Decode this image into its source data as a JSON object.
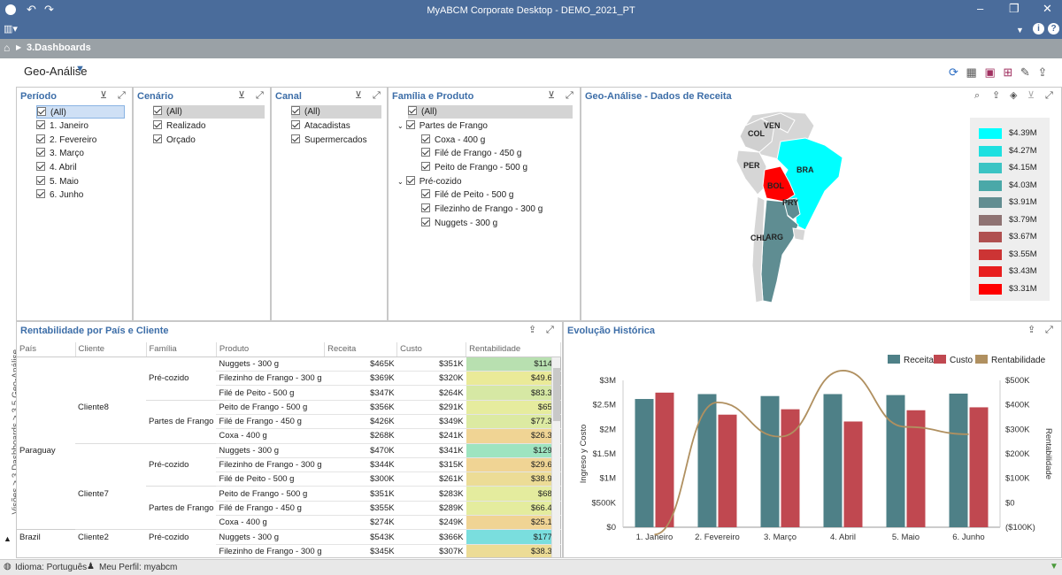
{
  "window": {
    "title": "MyABCM Corporate Desktop - DEMO_2021_PT"
  },
  "nav": {
    "breadcrumb": "3.Dashboards"
  },
  "dashboard": {
    "title": "Geo-Análise",
    "side_path": "Visões > 3.Dashboards > 3.5.Geo-Análise"
  },
  "filters": {
    "periodo": {
      "title": "Período",
      "items": [
        "(All)",
        "1. Janeiro",
        "2. Fevereiro",
        "3. Março",
        "4. Abril",
        "5. Maio",
        "6. Junho"
      ]
    },
    "cenario": {
      "title": "Cenário",
      "items": [
        "(All)",
        "Realizado",
        "Orçado"
      ]
    },
    "canal": {
      "title": "Canal",
      "items": [
        "(All)",
        "Atacadistas",
        "Supermercados"
      ]
    },
    "familia": {
      "title": "Família e Produto",
      "items": [
        "(All)",
        "Partes de Frango",
        "Coxa - 400 g",
        "Filé de Frango - 450 g",
        "Peito de Frango - 500 g",
        "Pré-cozido",
        "Filé de Peito - 500 g",
        "Filezinho de Frango - 300 g",
        "Nuggets - 300 g"
      ]
    }
  },
  "geo": {
    "title": "Geo-Análise - Dados de Receita",
    "countries": {
      "col": "COL",
      "ven": "VEN",
      "per": "PER",
      "bra": "BRA",
      "bol": "BOL",
      "pry": "PRY",
      "chl": "CHL",
      "arg": "ARG"
    },
    "legend": [
      {
        "label": "$4.39M",
        "color": "#00ffff"
      },
      {
        "label": "$4.27M",
        "color": "#1ee0e0"
      },
      {
        "label": "$4.15M",
        "color": "#3cc4c4"
      },
      {
        "label": "$4.03M",
        "color": "#4aa8a8"
      },
      {
        "label": "$3.91M",
        "color": "#628d91"
      },
      {
        "label": "$3.79M",
        "color": "#8f7373"
      },
      {
        "label": "$3.67M",
        "color": "#b05050"
      },
      {
        "label": "$3.55M",
        "color": "#cc3434"
      },
      {
        "label": "$3.43M",
        "color": "#e81e1e"
      },
      {
        "label": "$3.31M",
        "color": "#ff0000"
      }
    ]
  },
  "table": {
    "title": "Rentabilidade por País e Cliente",
    "headers": [
      "País",
      "Cliente",
      "Família",
      "Produto",
      "Receita",
      "Custo",
      "Rentabilidade"
    ],
    "rows": [
      {
        "pais": "",
        "cliente": "",
        "familia": "",
        "produto": "Nuggets - 300 g",
        "receita": "$465K",
        "custo": "$351K",
        "rent": "$114K",
        "rc": "#b8e0b0"
      },
      {
        "pais": "",
        "cliente": "",
        "familia": "Pré-cozido",
        "produto": "Filezinho de Frango - 300 g",
        "receita": "$369K",
        "custo": "$320K",
        "rent": "$49.6K",
        "rc": "#eaea98"
      },
      {
        "pais": "",
        "cliente": "",
        "familia": "",
        "produto": "Filé de Peito - 500 g",
        "receita": "$347K",
        "custo": "$264K",
        "rent": "$83.3K",
        "rc": "#d6e8a4"
      },
      {
        "pais": "",
        "cliente": "Cliente8",
        "familia": "",
        "produto": "Peito de Frango - 500 g",
        "receita": "$356K",
        "custo": "$291K",
        "rent": "$65K",
        "rc": "#e6ec9e"
      },
      {
        "pais": "",
        "cliente": "",
        "familia": "Partes de Frango",
        "produto": "Filé de Frango - 450 g",
        "receita": "$426K",
        "custo": "$349K",
        "rent": "$77.3K",
        "rc": "#dcea a2"
      },
      {
        "pais": "",
        "cliente": "",
        "familia": "",
        "produto": "Coxa - 400 g",
        "receita": "$268K",
        "custo": "$241K",
        "rent": "$26.3K",
        "rc": "#f0d494"
      },
      {
        "pais": "Paraguay",
        "cliente": "",
        "familia": "",
        "produto": "Nuggets - 300 g",
        "receita": "$470K",
        "custo": "$341K",
        "rent": "$129K",
        "rc": "#9ee4c0"
      },
      {
        "pais": "",
        "cliente": "",
        "familia": "Pré-cozido",
        "produto": "Filezinho de Frango - 300 g",
        "receita": "$344K",
        "custo": "$315K",
        "rent": "$29.6K",
        "rc": "#f0d494"
      },
      {
        "pais": "",
        "cliente": "",
        "familia": "",
        "produto": "Filé de Peito - 500 g",
        "receita": "$300K",
        "custo": "$261K",
        "rent": "$38.9K",
        "rc": "#ecdc96"
      },
      {
        "pais": "",
        "cliente": "Cliente7",
        "familia": "",
        "produto": "Peito de Frango - 500 g",
        "receita": "$351K",
        "custo": "$283K",
        "rent": "$68K",
        "rc": "#e4ec9e"
      },
      {
        "pais": "",
        "cliente": "",
        "familia": "Partes de Frango",
        "produto": "Filé de Frango - 450 g",
        "receita": "$355K",
        "custo": "$289K",
        "rent": "$66.4K",
        "rc": "#e4ec9e"
      },
      {
        "pais": "",
        "cliente": "",
        "familia": "",
        "produto": "Coxa - 400 g",
        "receita": "$274K",
        "custo": "$249K",
        "rent": "$25.1K",
        "rc": "#f0d494"
      },
      {
        "pais": "Brazil",
        "cliente": "Cliente2",
        "familia": "Pré-cozido",
        "produto": "Nuggets - 300 g",
        "receita": "$543K",
        "custo": "$366K",
        "rent": "$177K",
        "rc": "#7adede"
      },
      {
        "pais": "",
        "cliente": "",
        "familia": "",
        "produto": "Filezinho de Frango - 300 g",
        "receita": "$345K",
        "custo": "$307K",
        "rent": "$38.3K",
        "rc": "#ecdc96"
      }
    ]
  },
  "evolution": {
    "title": "Evolução Histórica"
  },
  "chart_data": {
    "type": "bar",
    "categories": [
      "1. Janeiro",
      "2. Fevereiro",
      "3. Março",
      "4. Abril",
      "5. Maio",
      "6. Junho"
    ],
    "series": [
      {
        "name": "Receita",
        "type": "bar",
        "axis": "left",
        "color": "#4e8087",
        "values": [
          2620000,
          2720000,
          2680000,
          2720000,
          2700000,
          2730000
        ]
      },
      {
        "name": "Custo",
        "type": "bar",
        "axis": "left",
        "color": "#c04850",
        "values": [
          2750000,
          2300000,
          2410000,
          2160000,
          2390000,
          2450000
        ]
      },
      {
        "name": "Rentabilidade",
        "type": "line",
        "axis": "right",
        "color": "#b09060",
        "values": [
          -130000,
          410000,
          270000,
          540000,
          310000,
          280000
        ]
      }
    ],
    "ylabel": "Ingreso y Costo",
    "y2label": "Rentabilidade",
    "yticks": [
      "$0",
      "$500K",
      "$1M",
      "$1.5M",
      "$2M",
      "$2.5M",
      "$3M"
    ],
    "y2ticks": [
      "($100K)",
      "$0",
      "$100K",
      "$200K",
      "$300K",
      "$400K",
      "$500K"
    ],
    "ylim": [
      0,
      3000000
    ],
    "y2lim": [
      -100000,
      500000
    ],
    "legend": "top-right"
  },
  "status": {
    "language": "Idioma: Português",
    "profile": "Meu Perfil: myabcm"
  }
}
